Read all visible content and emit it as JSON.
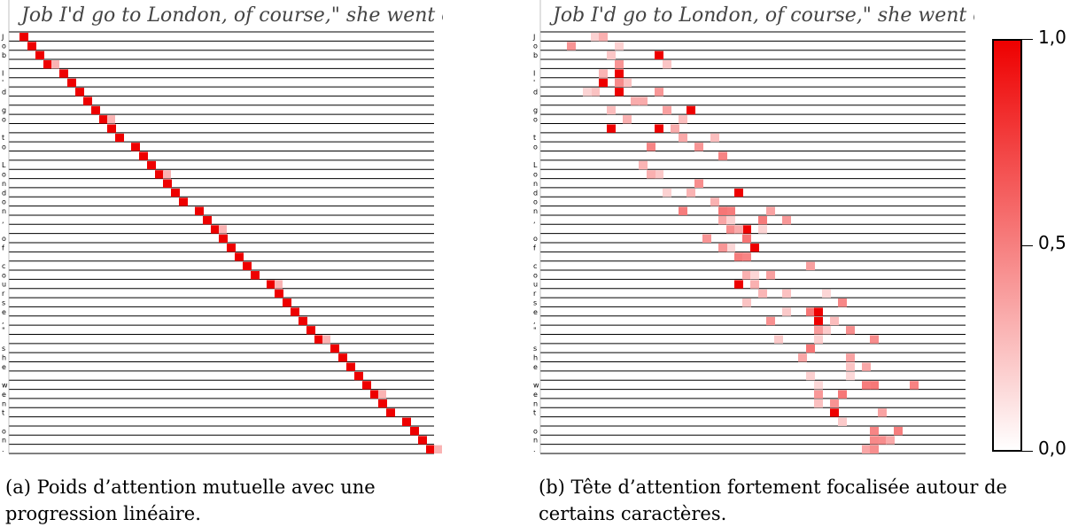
{
  "panels": [
    {
      "id": "a",
      "handwriting": "Job I'd go to London, of course,\" she went on.",
      "row_labels": [
        "J",
        "o",
        "b",
        "",
        "I",
        "'",
        "d",
        "",
        "g",
        "o",
        "",
        "t",
        "o",
        "",
        "L",
        "o",
        "n",
        "d",
        "o",
        "n",
        ",",
        "",
        "o",
        "f",
        "",
        "c",
        "o",
        "u",
        "r",
        "s",
        "e",
        ",",
        "\"",
        "",
        "s",
        "h",
        "e",
        "",
        "w",
        "e",
        "n",
        "t",
        "",
        "o",
        "n",
        "."
      ],
      "caption_tag": "(a)",
      "caption_text": "Poids d’attention mutuelle avec une progression linéaire."
    },
    {
      "id": "b",
      "handwriting": "Job I'd go to London, of course,\" she went on.",
      "row_labels": [
        "J",
        "o",
        "b",
        "",
        "I",
        "'",
        "d",
        "",
        "g",
        "o",
        "",
        "t",
        "o",
        "",
        "L",
        "o",
        "n",
        "d",
        "o",
        "n",
        ",",
        "",
        "o",
        "f",
        "",
        "c",
        "o",
        "u",
        "r",
        "s",
        "e",
        ",",
        "\"",
        "",
        "s",
        "h",
        "e",
        "",
        "w",
        "e",
        "n",
        "t",
        "",
        "o",
        "n",
        "."
      ],
      "caption_tag": "(b)",
      "caption_text": "Tête d’attention fortement focalisée autour de certains caractères."
    }
  ],
  "colorbar": {
    "ticks": [
      "1,0",
      "0,5",
      "0,0"
    ],
    "colors": {
      "low": "#ffffff",
      "high": "#ee0000"
    }
  },
  "chart_data": [
    {
      "type": "heatmap",
      "title": "",
      "xlabel": "",
      "ylabel": "",
      "description_pattern": "diagonal",
      "value_range": [
        0,
        1
      ]
    },
    {
      "type": "heatmap",
      "title": "",
      "xlabel": "",
      "ylabel": "",
      "description_pattern": "scattered",
      "value_range": [
        0,
        1
      ]
    }
  ]
}
